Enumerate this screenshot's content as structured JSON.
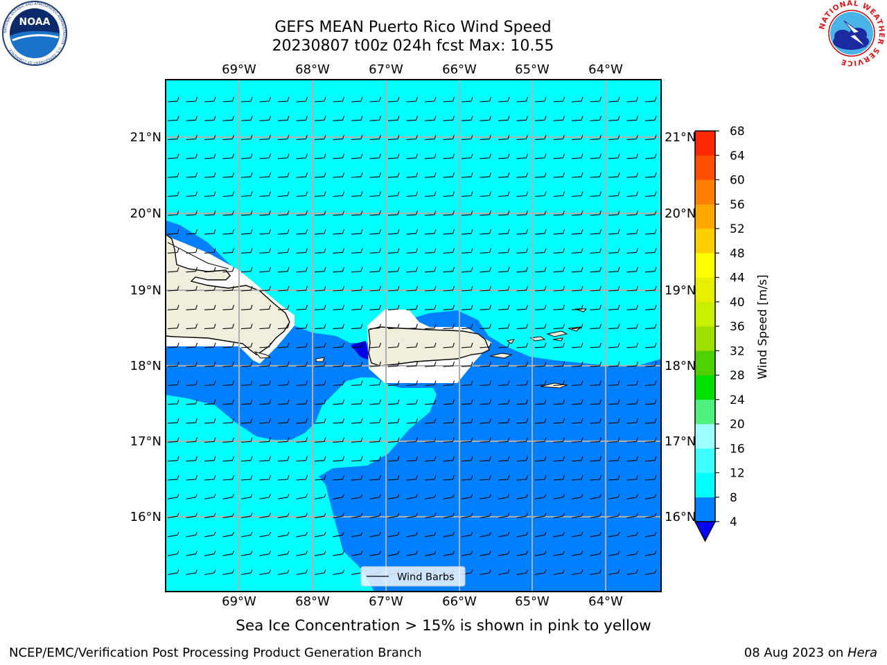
{
  "header": {
    "title_line1": "GEFS MEAN Puerto Rico Wind Speed",
    "title_line2": "20230807 t00z 024h fcst   Max: 10.55",
    "left_logo_text": "NOAA",
    "left_logo_ring_text": "NATIONAL OCEANIC AND ATMOSPHERIC ADMINISTRATION · U.S. DEPARTMENT OF COMMERCE",
    "right_logo_ring_text": "NATIONAL WEATHER SERVICE"
  },
  "map": {
    "lon_labels": [
      "69°W",
      "68°W",
      "67°W",
      "66°W",
      "65°W",
      "64°W"
    ],
    "lat_labels": [
      "21°N",
      "20°N",
      "19°N",
      "18°N",
      "17°N",
      "16°N"
    ],
    "legend_label": "Wind Barbs",
    "region_colors": {
      "light_zone": "#00ffff",
      "dark_zone": "#0080ff",
      "darkest": "#0000e6",
      "land": "#f0eedc"
    }
  },
  "colorbar": {
    "label": "Wind Speed [m/s]",
    "ticks": [
      "4",
      "8",
      "12",
      "16",
      "20",
      "24",
      "28",
      "32",
      "36",
      "40",
      "44",
      "48",
      "52",
      "56",
      "60",
      "64",
      "68"
    ],
    "colors": [
      "#0080ff",
      "#00ffff",
      "#40ffff",
      "#a0ffff",
      "#50f080",
      "#00e000",
      "#50d000",
      "#a0e000",
      "#c8f000",
      "#e6f000",
      "#ffff00",
      "#ffd000",
      "#ffa800",
      "#ff8000",
      "#ff5000",
      "#ff2800",
      "#ff0000"
    ],
    "extend_color": "#0000ff"
  },
  "footer": {
    "note": "Sea Ice Concentration > 15% is shown in pink to yellow",
    "branch": "NCEP/EMC/Verification Post Processing Product Generation Branch",
    "date_prefix": "08 Aug 2023 on ",
    "date_host": "Hera"
  }
}
